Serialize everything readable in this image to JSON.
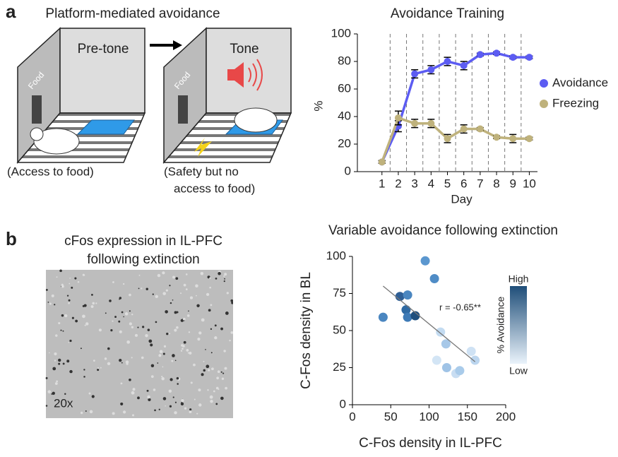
{
  "panels": {
    "a": {
      "label": "a",
      "title": "Platform-mediated avoidance",
      "box1": "Pre-tone",
      "box2": "Tone",
      "food1": "Food",
      "food2": "Food",
      "caption1": "(Access to food)",
      "caption2": [
        "(Safety but no",
        "access to food)"
      ]
    },
    "b": {
      "label": "b",
      "title": [
        "cFos expression in IL-PFC",
        "following extinction"
      ],
      "magnification": "20x"
    }
  },
  "chart_data": [
    {
      "type": "line",
      "title": "Avoidance Training",
      "xlabel": "Day",
      "ylabel": "%",
      "x": [
        1,
        2,
        3,
        4,
        5,
        6,
        7,
        8,
        9,
        10
      ],
      "series": [
        {
          "name": "Avoidance",
          "color": "#5c5cf2",
          "values": [
            7,
            33,
            71,
            74,
            80,
            77,
            85,
            86,
            83,
            83
          ],
          "errors": [
            1,
            4,
            3,
            3,
            3,
            3,
            1,
            1,
            1,
            1
          ]
        },
        {
          "name": "Freezing",
          "color": "#bfb27c",
          "values": [
            7,
            39,
            35,
            35,
            24,
            31,
            31,
            25,
            24,
            24
          ],
          "errors": [
            1,
            5,
            3,
            3,
            3,
            3,
            1,
            1,
            3,
            1
          ]
        }
      ],
      "xlim": [
        -0.5,
        10.5
      ],
      "xticks": [
        1,
        2,
        3,
        4,
        5,
        6,
        7,
        8,
        9,
        10
      ],
      "ylim": [
        0,
        100
      ],
      "yticks": [
        0,
        20,
        40,
        60,
        80,
        100
      ],
      "legend": "right"
    },
    {
      "type": "scatter",
      "title": "Variable avoidance following extinction",
      "xlabel": "C-Fos density in IL-PFC",
      "ylabel": "C-Fos density in BL",
      "x": [
        40,
        62,
        72,
        70,
        72,
        82,
        95,
        107,
        115,
        122,
        123,
        110,
        135,
        140,
        155,
        160
      ],
      "values": [
        59,
        73,
        74,
        64,
        59,
        60,
        97,
        85,
        49,
        41,
        25,
        30,
        21,
        23,
        36,
        30
      ],
      "colors": [
        "#4a86c0",
        "#2f5f96",
        "#4a86c0",
        "#2f6aa3",
        "#3d7ab6",
        "#1e4f7e",
        "#5b97cf",
        "#4f8cc6",
        "#c3dbf1",
        "#a7c8e8",
        "#9fc3e6",
        "#d3e5f5",
        "#c8ddf2",
        "#a9cbea",
        "#cfe2f4",
        "#bcd6ef"
      ],
      "fit": {
        "x": [
          40,
          160
        ],
        "y": [
          80,
          29
        ]
      },
      "annotation": "r = -0.65**",
      "colorbar": {
        "title": "% Avoidance",
        "high": "High",
        "low": "Low"
      },
      "xlim": [
        0,
        200
      ],
      "xticks": [
        0,
        50,
        100,
        150,
        200
      ],
      "ylim": [
        0,
        100
      ],
      "yticks": [
        0,
        25,
        50,
        75,
        100
      ]
    }
  ]
}
